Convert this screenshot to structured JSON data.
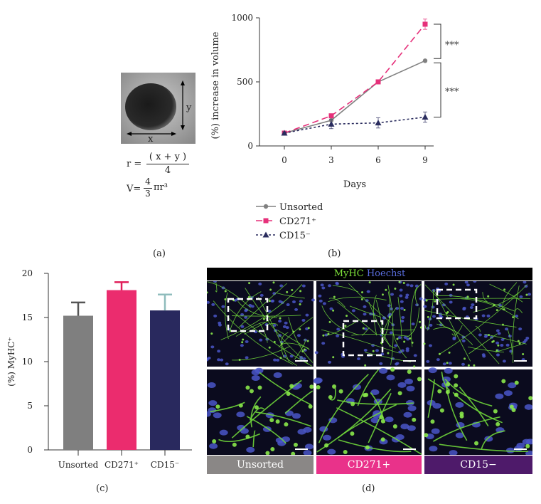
{
  "panels": {
    "a": {
      "letter": "(a)",
      "x_label": "x",
      "y_label": "y",
      "formula_r_lhs": "r =",
      "formula_r_num": "( x + y )",
      "formula_r_den": "4",
      "formula_v_lhs": "V=",
      "formula_v_frac_num": "4",
      "formula_v_frac_den": "3",
      "formula_v_rhs": "πr³"
    },
    "b": {
      "letter": "(b)"
    },
    "c": {
      "letter": "(c)"
    },
    "d": {
      "letter": "(d)",
      "title_green": "MyHC",
      "title_blue": "Hoechst",
      "captions": [
        {
          "label": "Unsorted",
          "color": "#8a8786"
        },
        {
          "label": "CD271+",
          "color": "#e9328a"
        },
        {
          "label": "CD15−",
          "color": "#4e1a6a"
        }
      ]
    }
  },
  "chart_data": [
    {
      "type": "line",
      "ylabel": "(%) increase in volume",
      "xlabel": "Days",
      "x": [
        0,
        3,
        6,
        9
      ],
      "xticks": [
        "0",
        "3",
        "6",
        "9"
      ],
      "yticks": [
        "0",
        "500",
        "1000"
      ],
      "ylim": [
        0,
        1000
      ],
      "significance": [
        "***",
        "***"
      ],
      "legend_position": "bottom-left",
      "series": [
        {
          "name": "Unsorted",
          "values": [
            100,
            200,
            500,
            665
          ],
          "errors": [
            0,
            0,
            0,
            0
          ],
          "color": "#808080",
          "marker": "circle",
          "dash": "solid"
        },
        {
          "name": "CD271⁺",
          "values": [
            100,
            235,
            500,
            950
          ],
          "errors": [
            10,
            15,
            15,
            40
          ],
          "color": "#e6307a",
          "marker": "square",
          "dash": "long-dash"
        },
        {
          "name": "CD15⁻",
          "values": [
            100,
            170,
            180,
            225
          ],
          "errors": [
            10,
            35,
            40,
            40
          ],
          "color": "#2a2c5e",
          "marker": "triangle",
          "dash": "dotted"
        }
      ]
    },
    {
      "type": "bar",
      "ylabel": "(%) MyHC⁺",
      "categories": [
        "Unsorted",
        "CD271⁺",
        "CD15⁻"
      ],
      "values": [
        15.2,
        18.1,
        15.8
      ],
      "errors": [
        1.5,
        0.9,
        1.8
      ],
      "colors": [
        "#7f7f7f",
        "#eb2c6e",
        "#29295e"
      ],
      "error_colors": [
        "#555555",
        "#e01e5a",
        "#8fbcbc"
      ],
      "yticks": [
        "0",
        "5",
        "10",
        "15",
        "20"
      ],
      "ylim": [
        0,
        20
      ]
    }
  ]
}
